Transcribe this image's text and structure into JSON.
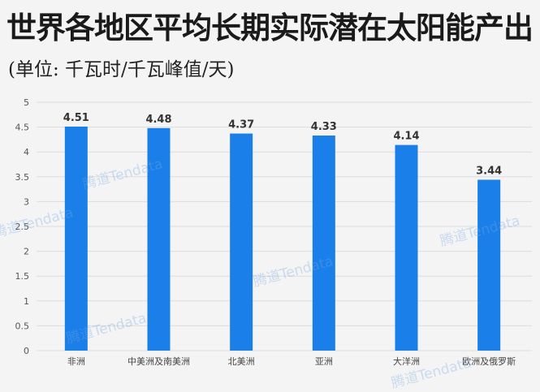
{
  "title": "世界各地区平均长期实际潜在太阳能产出",
  "subtitle": "(单位: 千瓦时/千瓦峰值/天)",
  "watermark": "腾道Tendata",
  "chart_data": {
    "type": "bar",
    "title": "世界各地区平均长期实际潜在太阳能产出",
    "subtitle": "(单位: 千瓦时/千瓦峰值/天)",
    "categories": [
      "非洲",
      "中美洲及南美洲",
      "北美洲",
      "亚洲",
      "大洋洲",
      "欧洲及俄罗斯"
    ],
    "values": [
      4.51,
      4.48,
      4.37,
      4.33,
      4.14,
      3.44
    ],
    "ylim": [
      0,
      5
    ],
    "yticks": [
      "0",
      "0.5",
      "1",
      "1.5",
      "2",
      "2.5",
      "3",
      "3.5",
      "4",
      "4.5",
      "5"
    ],
    "grid": true,
    "bar_color": "#1a7fe8",
    "data_labels": true
  }
}
